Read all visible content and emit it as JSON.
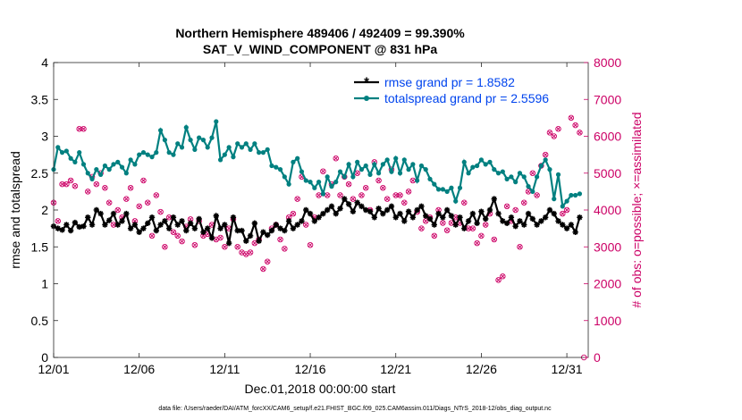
{
  "chart_data": {
    "type": "line",
    "title": "Northern Hemisphere 489406 / 492409 = 99.390%",
    "subtitle": "SAT_V_WIND_COMPONENT @ 831 hPa",
    "xlabel": "Dec.01,2018 00:00:00 start",
    "ylabel_left": "rmse and totalspread",
    "ylabel_right": "# of obs: o=possible; ×=assimilated",
    "footnote": "data file: /Users/raeder/DAI/ATM_forcXX/CAM6_setup/f.e21.FHIST_BGC.f09_025.CAM6assim.011/Diags_NTrS_2018-12/obs_diag_output.nc",
    "x_ticks": [
      "12/01",
      "12/06",
      "12/11",
      "12/16",
      "12/21",
      "12/26",
      "12/31"
    ],
    "x_tick_days": [
      0,
      5,
      10,
      15,
      20,
      25,
      30
    ],
    "xlim": [
      0,
      31.25
    ],
    "ylim_left": [
      0,
      4
    ],
    "y_ticks_left": [
      "0",
      "0.5",
      "1",
      "1.5",
      "2",
      "2.5",
      "3",
      "3.5",
      "4"
    ],
    "ylim_right": [
      0,
      8000
    ],
    "y_ticks_right": [
      "0",
      "1000",
      "2000",
      "3000",
      "4000",
      "5000",
      "6000",
      "7000",
      "8000"
    ],
    "colors": {
      "rmse": "#000000",
      "spread": "#008080",
      "obs": "#cc0066",
      "legend_text": "#0044ee"
    },
    "legend": [
      {
        "name": "rmse grand pr = 1.8582",
        "marker": "star"
      },
      {
        "name": "totalspread grand pr = 2.5596",
        "marker": "circle"
      }
    ],
    "n_points": 124,
    "series": [
      {
        "name": "rmse",
        "values": [
          1.78,
          1.75,
          1.73,
          1.8,
          1.72,
          1.83,
          1.77,
          1.78,
          1.9,
          1.8,
          2.0,
          1.95,
          1.8,
          1.86,
          1.95,
          1.8,
          1.85,
          1.95,
          1.75,
          1.8,
          1.7,
          1.75,
          1.82,
          1.9,
          1.72,
          1.8,
          1.85,
          1.75,
          1.9,
          1.8,
          1.85,
          1.72,
          1.82,
          1.75,
          1.88,
          1.7,
          1.75,
          1.62,
          1.92,
          1.75,
          1.8,
          1.55,
          1.9,
          1.72,
          1.72,
          1.58,
          1.65,
          1.82,
          1.58,
          1.7,
          1.66,
          1.72,
          1.8,
          1.75,
          1.72,
          1.85,
          1.75,
          1.8,
          1.85,
          2.0,
          1.95,
          1.85,
          1.9,
          1.95,
          2.0,
          2.05,
          1.95,
          2.02,
          2.15,
          2.08,
          1.98,
          2.1,
          2.05,
          2.0,
          1.98,
          1.9,
          2.02,
          1.95,
          2.0,
          2.05,
          1.9,
          1.95,
          1.85,
          1.98,
          1.9,
          2.0,
          2.05,
          1.92,
          1.88,
          1.8,
          1.95,
          1.9,
          2.0,
          1.92,
          1.8,
          1.9,
          1.75,
          1.85,
          1.95,
          1.82,
          1.98,
          1.88,
          2.0,
          2.15,
          1.95,
          1.85,
          1.82,
          1.9,
          1.78,
          1.85,
          1.8,
          1.95,
          1.88,
          1.8,
          1.85,
          1.9,
          2.0,
          1.95,
          1.85,
          1.8,
          1.75,
          1.8,
          1.7,
          1.9
        ]
      },
      {
        "name": "totalspread",
        "values": [
          2.55,
          2.85,
          2.78,
          2.8,
          2.7,
          2.65,
          2.78,
          2.62,
          2.5,
          2.42,
          2.55,
          2.48,
          2.6,
          2.55,
          2.62,
          2.65,
          2.58,
          2.5,
          2.68,
          2.62,
          2.75,
          2.78,
          2.75,
          2.72,
          2.78,
          3.08,
          2.95,
          2.78,
          2.75,
          2.9,
          2.85,
          3.12,
          2.95,
          2.82,
          2.98,
          2.95,
          2.85,
          2.98,
          3.2,
          2.68,
          2.75,
          2.85,
          2.72,
          2.9,
          2.85,
          2.9,
          2.82,
          2.9,
          2.78,
          2.78,
          2.82,
          2.6,
          2.58,
          2.55,
          2.45,
          2.35,
          2.65,
          2.7,
          2.52,
          2.4,
          2.38,
          2.3,
          2.38,
          2.22,
          2.45,
          2.32,
          2.38,
          2.52,
          2.45,
          2.62,
          2.45,
          2.65,
          2.55,
          2.6,
          2.48,
          2.62,
          2.5,
          2.62,
          2.68,
          2.52,
          2.7,
          2.5,
          2.68,
          2.55,
          2.62,
          2.4,
          2.6,
          2.55,
          2.42,
          2.35,
          2.28,
          2.28,
          2.25,
          2.3,
          2.12,
          2.3,
          2.65,
          2.5,
          2.58,
          2.6,
          2.68,
          2.62,
          2.65,
          2.55,
          2.5,
          2.52,
          2.42,
          2.45,
          2.38,
          2.5,
          2.45,
          2.32,
          2.25,
          2.45,
          2.6,
          2.68,
          2.55,
          2.15,
          2.48,
          2.05,
          2.12,
          2.2,
          2.2,
          2.22
        ]
      }
    ],
    "obs_possible": [
      4200,
      3700,
      4700,
      4700,
      4800,
      4650,
      6200,
      6200,
      4500,
      4900,
      4700,
      5000,
      4600,
      4200,
      3600,
      4000,
      3800,
      4300,
      4600,
      3700,
      4100,
      4800,
      4200,
      3300,
      4400,
      3950,
      3000,
      3800,
      3400,
      3300,
      3150,
      3550,
      3750,
      3050,
      3700,
      3300,
      3350,
      3600,
      3200,
      3250,
      3000,
      3500,
      3750,
      3000,
      2850,
      2800,
      2850,
      3100,
      3200,
      2400,
      2600,
      3500,
      3600,
      3200,
      2950,
      3800,
      3900,
      4300,
      4900,
      3600,
      3050,
      3800,
      4400,
      5050,
      4400,
      4700,
      5400,
      4400,
      4900,
      4700,
      4300,
      5000,
      4400,
      4600,
      4000,
      5300,
      4800,
      4600,
      4300,
      5100,
      4400,
      4400,
      4200,
      4500,
      4800,
      3950,
      3500,
      3700,
      3800,
      3300,
      4000,
      3650,
      3450,
      3650,
      3800,
      3650,
      4200,
      3500,
      3500,
      3100,
      3300,
      3600,
      3900,
      3200,
      2100,
      2200,
      4100,
      3700,
      4000,
      3000,
      4200,
      4500,
      5000,
      4400,
      5200,
      5500,
      6100,
      6000,
      6200,
      3900,
      4000,
      6500,
      6300,
      6100
    ],
    "obs_last_point": 0
  }
}
